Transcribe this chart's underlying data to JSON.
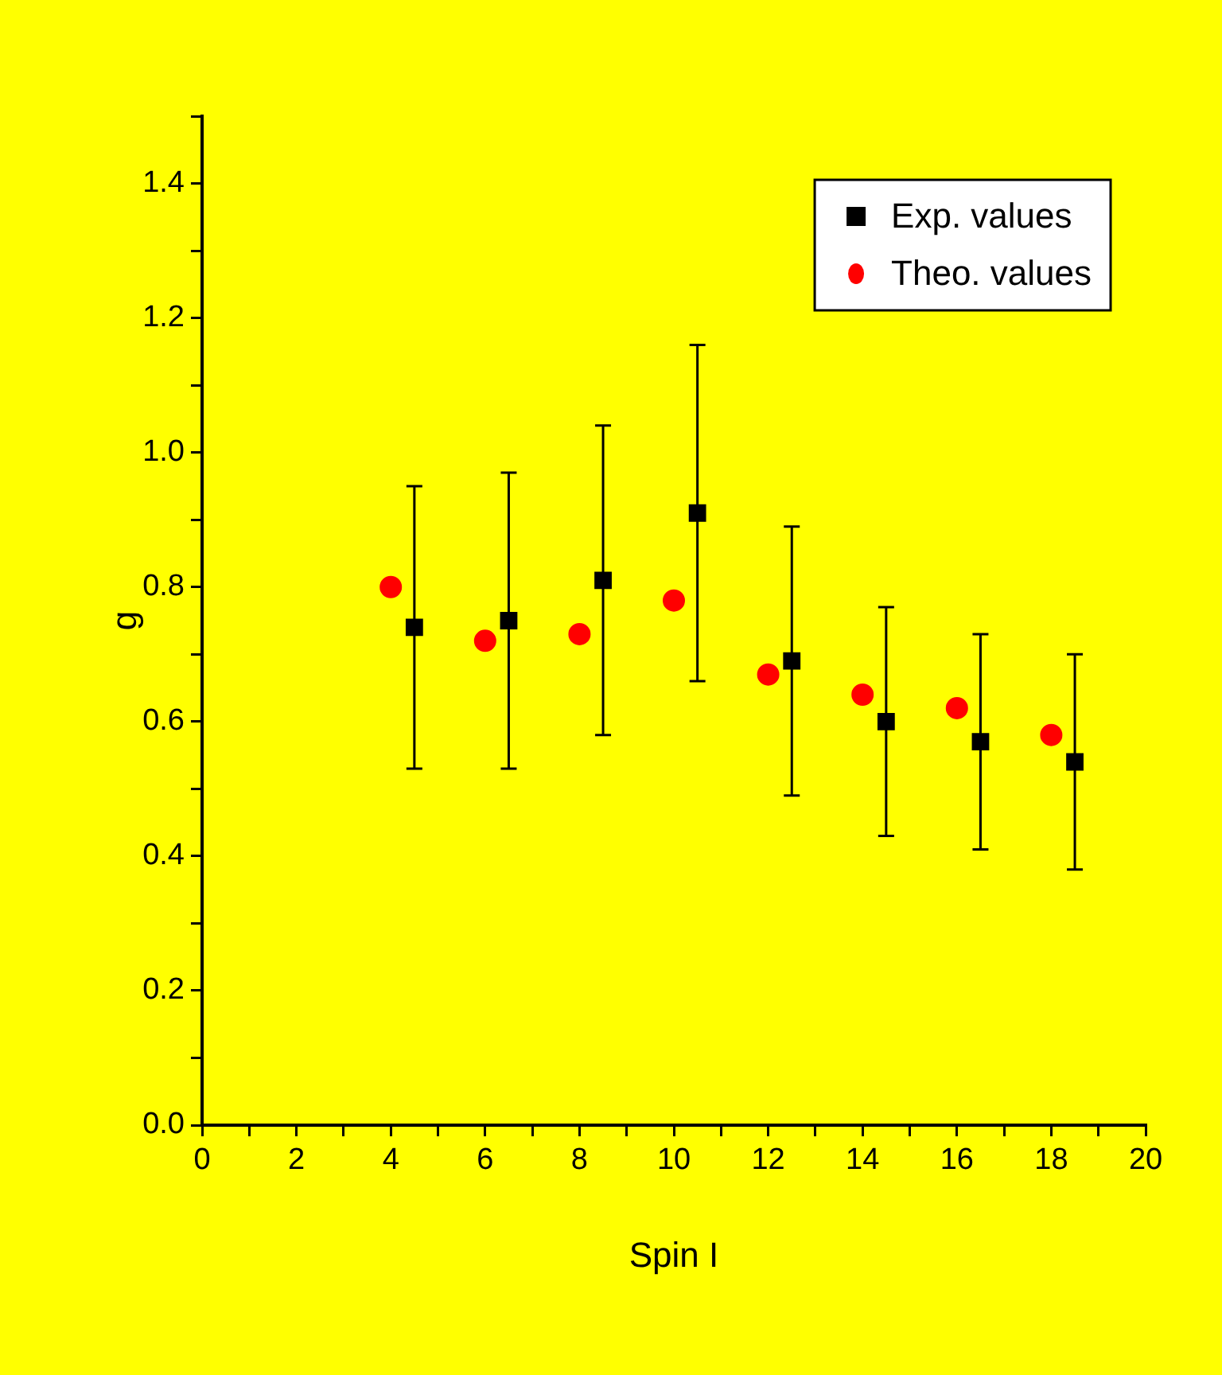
{
  "chart_data": {
    "type": "scatter",
    "xlabel": "Spin I",
    "ylabel": "g",
    "xlim": [
      0,
      20
    ],
    "xticks": [
      0,
      {
        "value": 1,
        "label": null
      },
      2,
      {
        "value": 3,
        "label": null
      },
      4,
      {
        "value": 5,
        "label": null
      },
      6,
      {
        "value": 7,
        "label": null
      },
      8,
      {
        "value": 9,
        "label": null
      },
      10,
      {
        "value": 11,
        "label": null
      },
      12,
      {
        "value": 13,
        "label": null
      },
      14,
      {
        "value": 15,
        "label": null
      },
      16,
      {
        "value": 17,
        "label": null
      },
      18,
      {
        "value": 19,
        "label": null
      },
      20
    ],
    "ylim": [
      0,
      1.5
    ],
    "yticks": [
      {
        "value": 0,
        "label": "0.0"
      },
      {
        "value": 0.1,
        "label": null
      },
      {
        "value": 0.2,
        "label": "0.2"
      },
      {
        "value": 0.3,
        "label": null
      },
      {
        "value": 0.4,
        "label": "0.4"
      },
      {
        "value": 0.5,
        "label": null
      },
      {
        "value": 0.6,
        "label": "0.6"
      },
      {
        "value": 0.7,
        "label": null
      },
      {
        "value": 0.8,
        "label": "0.8"
      },
      {
        "value": 0.9,
        "label": null
      },
      {
        "value": 1,
        "label": "1.0"
      },
      {
        "value": 1.1,
        "label": null
      },
      {
        "value": 1.2,
        "label": "1.2"
      },
      {
        "value": 1.3,
        "label": null
      },
      {
        "value": 1.4,
        "label": "1.4"
      },
      {
        "value": 1.5,
        "label": null
      }
    ],
    "grid": false,
    "legend": "top right",
    "series": [
      {
        "name": "Exp. values",
        "color": "#000000",
        "marker": "square",
        "x": [
          4.5,
          6.5,
          8.5,
          10.5,
          12.5,
          14.5,
          16.5,
          18.5
        ],
        "values": [
          0.74,
          0.75,
          0.81,
          0.91,
          0.69,
          0.6,
          0.57,
          0.54
        ],
        "errors": [
          0.21,
          0.22,
          0.23,
          0.25,
          0.2,
          0.17,
          0.16,
          0.16
        ]
      },
      {
        "name": "Theo. values",
        "color": "#ff0000",
        "marker": "circle",
        "x": [
          4,
          6,
          8,
          10,
          12,
          14,
          16,
          18
        ],
        "values": [
          0.8,
          0.72,
          0.73,
          0.78,
          0.67,
          0.64,
          0.62,
          0.58
        ]
      }
    ]
  }
}
